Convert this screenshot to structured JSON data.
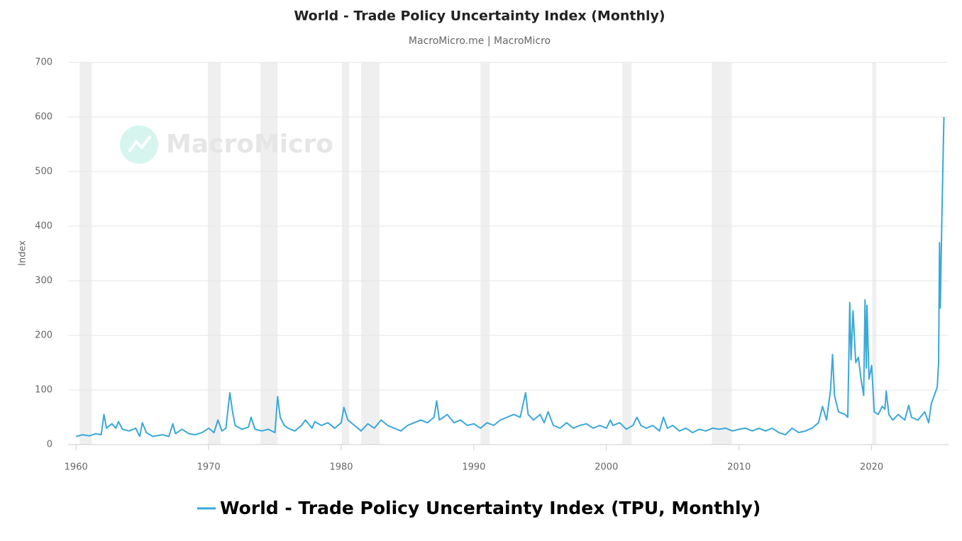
{
  "chart_data": {
    "type": "line",
    "title": "World - Trade Policy Uncertainty Index (Monthly)",
    "subtitle": "MacroMicro.me | MacroMicro",
    "watermark": "MacroMicro",
    "ylabel": "Index",
    "xlim": [
      1959.4,
      2025.8
    ],
    "ylim": [
      0,
      700
    ],
    "xticks": [
      1960,
      1970,
      1980,
      1990,
      2000,
      2010,
      2020
    ],
    "yticks": [
      0,
      100,
      200,
      300,
      400,
      500,
      600,
      700
    ],
    "grid": true,
    "recessions": [
      [
        1960.27,
        1961.18
      ],
      [
        1969.95,
        1970.9
      ],
      [
        1973.9,
        1975.2
      ],
      [
        1980.05,
        1980.6
      ],
      [
        1981.5,
        1982.9
      ],
      [
        1990.5,
        1991.2
      ],
      [
        2001.2,
        2001.9
      ],
      [
        2007.95,
        2009.45
      ],
      [
        2020.05,
        2020.35
      ]
    ],
    "x": [
      1960,
      1960.5,
      1961,
      1961.5,
      1961.9,
      1962.1,
      1962.3,
      1962.7,
      1963,
      1963.2,
      1963.5,
      1964,
      1964.5,
      1964.8,
      1965,
      1965.3,
      1965.8,
      1966.5,
      1967,
      1967.3,
      1967.5,
      1968,
      1968.5,
      1969,
      1969.5,
      1970,
      1970.4,
      1970.7,
      1971,
      1971.3,
      1971.6,
      1971.8,
      1972,
      1972.5,
      1973,
      1973.2,
      1973.5,
      1974,
      1974.5,
      1975,
      1975.2,
      1975.4,
      1975.7,
      1976,
      1976.5,
      1977,
      1977.3,
      1977.8,
      1978,
      1978.5,
      1979,
      1979.5,
      1980,
      1980.2,
      1980.5,
      1981,
      1981.5,
      1982,
      1982.5,
      1983,
      1983.5,
      1984,
      1984.5,
      1985,
      1985.5,
      1986,
      1986.5,
      1987,
      1987.2,
      1987.4,
      1988,
      1988.5,
      1989,
      1989.5,
      1990,
      1990.5,
      1991,
      1991.5,
      1992,
      1992.5,
      1993,
      1993.5,
      1993.9,
      1994.1,
      1994.5,
      1995,
      1995.3,
      1995.6,
      1996,
      1996.5,
      1997,
      1997.5,
      1998,
      1998.5,
      1999,
      1999.5,
      2000,
      2000.3,
      2000.5,
      2001,
      2001.5,
      2002,
      2002.3,
      2002.6,
      2003,
      2003.5,
      2004,
      2004.3,
      2004.6,
      2005,
      2005.5,
      2006,
      2006.5,
      2007,
      2007.5,
      2008,
      2008.5,
      2009,
      2009.5,
      2010,
      2010.5,
      2011,
      2011.5,
      2012,
      2012.5,
      2013,
      2013.5,
      2014,
      2014.5,
      2015,
      2015.5,
      2016,
      2016.3,
      2016.6,
      2016.9,
      2017.05,
      2017.2,
      2017.5,
      2018,
      2018.2,
      2018.35,
      2018.45,
      2018.6,
      2018.8,
      2019,
      2019.2,
      2019.4,
      2019.5,
      2019.6,
      2019.65,
      2019.8,
      2020,
      2020.2,
      2020.5,
      2020.8,
      2021,
      2021.1,
      2021.3,
      2021.6,
      2022,
      2022.5,
      2022.8,
      2023,
      2023.5,
      2024,
      2024.3,
      2024.5,
      2024.8,
      2024.95,
      2025.05,
      2025.12,
      2025.18,
      2025.3,
      2025.45
    ],
    "series": [
      {
        "name": "World - Trade Policy Uncertainty Index (TPU, Monthly)",
        "color": "#3aa8d8",
        "values": [
          15,
          18,
          16,
          20,
          18,
          55,
          30,
          38,
          30,
          42,
          28,
          25,
          30,
          15,
          40,
          22,
          15,
          18,
          15,
          38,
          20,
          28,
          20,
          18,
          22,
          30,
          22,
          45,
          25,
          30,
          95,
          60,
          35,
          28,
          32,
          50,
          28,
          25,
          28,
          22,
          88,
          50,
          35,
          30,
          25,
          35,
          45,
          30,
          42,
          35,
          40,
          30,
          40,
          68,
          45,
          35,
          25,
          38,
          30,
          45,
          35,
          30,
          25,
          35,
          40,
          45,
          40,
          50,
          80,
          45,
          55,
          40,
          45,
          35,
          38,
          30,
          40,
          35,
          45,
          50,
          55,
          50,
          95,
          55,
          45,
          55,
          40,
          60,
          35,
          30,
          40,
          30,
          35,
          38,
          30,
          35,
          30,
          45,
          35,
          40,
          28,
          35,
          50,
          35,
          30,
          35,
          25,
          50,
          30,
          35,
          25,
          30,
          22,
          28,
          25,
          30,
          28,
          30,
          25,
          28,
          30,
          25,
          30,
          25,
          30,
          22,
          18,
          30,
          22,
          25,
          30,
          40,
          70,
          45,
          100,
          165,
          90,
          60,
          55,
          50,
          260,
          155,
          245,
          150,
          160,
          120,
          90,
          265,
          140,
          255,
          120,
          145,
          60,
          55,
          70,
          65,
          98,
          55,
          45,
          55,
          45,
          72,
          50,
          45,
          60,
          40,
          75,
          95,
          105,
          150,
          370,
          250,
          420,
          600
        ]
      }
    ]
  }
}
